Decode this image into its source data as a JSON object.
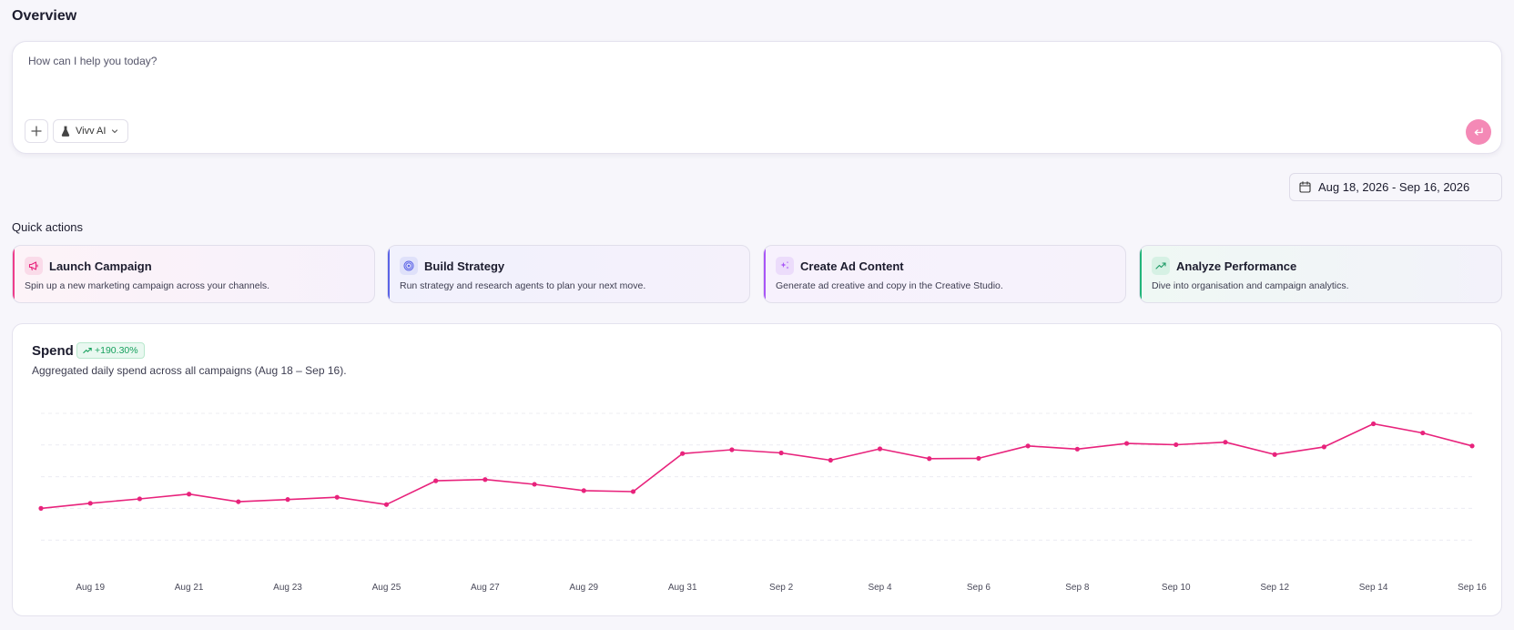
{
  "page": {
    "title": "Overview"
  },
  "prompt": {
    "placeholder": "How can I help you today?",
    "model_label": "Vivv AI",
    "icons": {
      "add": "plus-icon",
      "model": "flask-icon",
      "dropdown": "chevron-down-icon",
      "send": "enter-icon"
    }
  },
  "date_range": {
    "label": "Aug 18, 2026 - Sep 16, 2026",
    "icon": "calendar-icon"
  },
  "quick_actions": {
    "title": "Quick actions",
    "items": [
      {
        "title": "Launch Campaign",
        "desc": "Spin up a new marketing campaign across your channels.",
        "icon": "megaphone-icon",
        "accent": "#ee3d8b"
      },
      {
        "title": "Build Strategy",
        "desc": "Run strategy and research agents to plan your next move.",
        "icon": "target-icon",
        "accent": "#5b63e6"
      },
      {
        "title": "Create Ad Content",
        "desc": "Generate ad creative and copy in the Creative Studio.",
        "icon": "sparkles-icon",
        "accent": "#a855f7"
      },
      {
        "title": "Analyze Performance",
        "desc": "Dive into organisation and campaign analytics.",
        "icon": "trending-up-icon",
        "accent": "#22b57a"
      }
    ]
  },
  "spend": {
    "title": "Spend",
    "badge": "+190.30%",
    "description": "Aggregated daily spend across all campaigns (Aug 18 – Sep 16)."
  },
  "chart_data": {
    "type": "line",
    "title": "",
    "xlabel": "",
    "ylabel": "",
    "color": "#e8237c",
    "grid": true,
    "x": [
      "Aug 18",
      "Aug 19",
      "Aug 20",
      "Aug 21",
      "Aug 22",
      "Aug 23",
      "Aug 24",
      "Aug 25",
      "Aug 26",
      "Aug 27",
      "Aug 28",
      "Aug 29",
      "Aug 30",
      "Aug 31",
      "Sep 1",
      "Sep 2",
      "Sep 3",
      "Sep 4",
      "Sep 5",
      "Sep 6",
      "Sep 7",
      "Sep 8",
      "Sep 9",
      "Sep 10",
      "Sep 11",
      "Sep 12",
      "Sep 13",
      "Sep 14",
      "Sep 15",
      "Sep 16"
    ],
    "x_tick_labels": [
      "Aug 19",
      "Aug 21",
      "Aug 23",
      "Aug 25",
      "Aug 27",
      "Aug 29",
      "Aug 31",
      "Sep 2",
      "Sep 4",
      "Sep 6",
      "Sep 8",
      "Sep 10",
      "Sep 12",
      "Sep 14",
      "Sep 16"
    ],
    "values": [
      1.0,
      1.16,
      1.3,
      1.45,
      1.21,
      1.28,
      1.35,
      1.12,
      1.87,
      1.91,
      1.76,
      1.56,
      1.53,
      2.73,
      2.85,
      2.75,
      2.52,
      2.88,
      2.57,
      2.58,
      2.97,
      2.87,
      3.05,
      3.01,
      3.09,
      2.7,
      2.94,
      3.67,
      3.38,
      2.97
    ],
    "ylim": [
      -1.0,
      4.0
    ],
    "gridlines": [
      0,
      1,
      2,
      3,
      4
    ]
  }
}
